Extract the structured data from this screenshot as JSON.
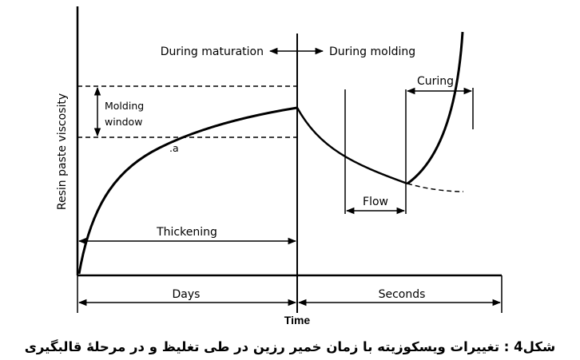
{
  "diagram": {
    "y_axis_label": "Resin paste viscosity",
    "x_axis_label": "Time",
    "phase_left": "During maturation",
    "phase_right": "During molding",
    "molding_window_line1": "Molding",
    "molding_window_line2": "window",
    "thickening": "Thickening",
    "flow": "Flow",
    "curing": "Curing",
    "days": "Days",
    "seconds": "Seconds",
    "point_mark": ".a"
  },
  "caption": "شكل4 : تغييرات ويسكوزيته با زمان خمير رزين در طی تغليظ و در مرحلهٔ قالبگيری"
}
